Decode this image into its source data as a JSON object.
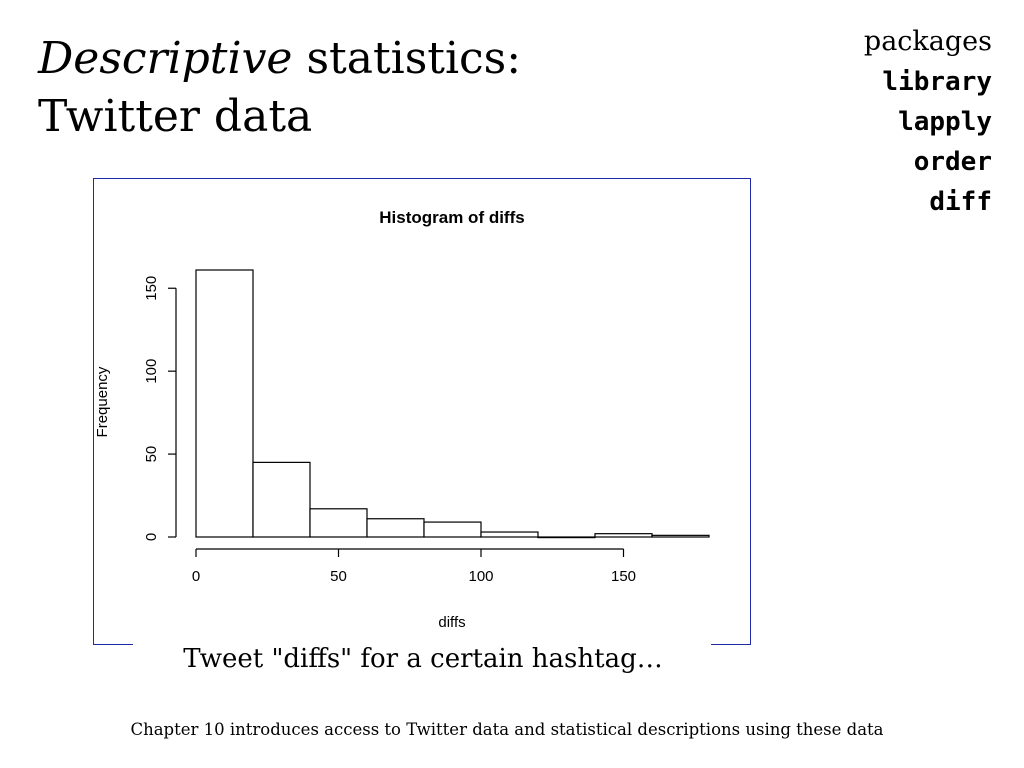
{
  "slide": {
    "title_italic": "Descriptive",
    "title_rest": " statistics:",
    "title_line2": "Twitter data",
    "packages_label": "packages",
    "functions": [
      "library",
      "lapply",
      "order",
      "diff"
    ],
    "caption": "Tweet \"diffs\" for a certain hashtag…",
    "footer": "Chapter 10 introduces access to Twitter data and statistical descriptions using these data",
    "frame_color": "#1e2aa8"
  },
  "chart_data": {
    "type": "bar",
    "title": "Histogram of diffs",
    "xlabel": "diffs",
    "ylabel": "Frequency",
    "bins": [
      {
        "from": 0,
        "to": 20,
        "count": 161
      },
      {
        "from": 20,
        "to": 40,
        "count": 45
      },
      {
        "from": 40,
        "to": 60,
        "count": 17
      },
      {
        "from": 60,
        "to": 80,
        "count": 11
      },
      {
        "from": 80,
        "to": 100,
        "count": 9
      },
      {
        "from": 100,
        "to": 120,
        "count": 3
      },
      {
        "from": 120,
        "to": 140,
        "count": 0
      },
      {
        "from": 140,
        "to": 160,
        "count": 2
      },
      {
        "from": 160,
        "to": 180,
        "count": 1
      }
    ],
    "xlim": [
      0,
      180
    ],
    "ylim": [
      0,
      161
    ],
    "x_ticks": [
      0,
      50,
      100,
      150
    ],
    "y_ticks": [
      0,
      50,
      100,
      150
    ],
    "grid": false,
    "bar_fill": "#ffffff",
    "bar_stroke": "#000000"
  }
}
